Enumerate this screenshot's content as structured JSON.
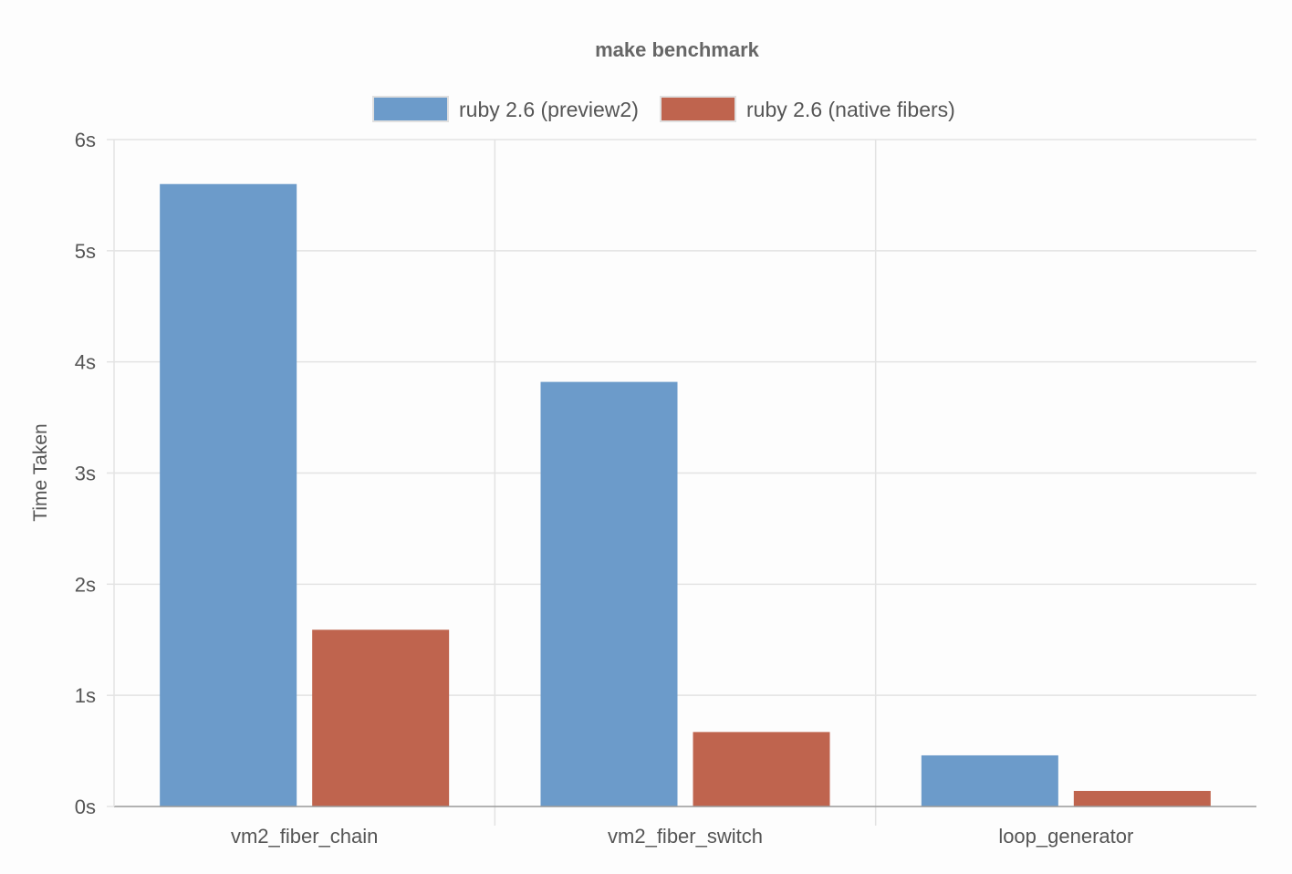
{
  "chart_data": {
    "type": "bar",
    "title": "make benchmark",
    "ylabel": "Time Taken",
    "xlabel": "",
    "ylim": [
      0,
      6
    ],
    "y_tick_values": [
      0,
      1,
      2,
      3,
      4,
      5,
      6
    ],
    "y_tick_labels": [
      "0s",
      "1s",
      "2s",
      "3s",
      "4s",
      "5s",
      "6s"
    ],
    "categories": [
      "vm2_fiber_chain",
      "vm2_fiber_switch",
      "loop_generator"
    ],
    "series": [
      {
        "name": "ruby 2.6 (preview2)",
        "values": [
          5.6,
          3.82,
          0.46
        ],
        "color": "#6c9bca"
      },
      {
        "name": "ruby 2.6 (native fibers)",
        "values": [
          1.59,
          0.67,
          0.14
        ],
        "color": "#bf644e"
      }
    ],
    "legend_position": "top",
    "grid": true
  }
}
